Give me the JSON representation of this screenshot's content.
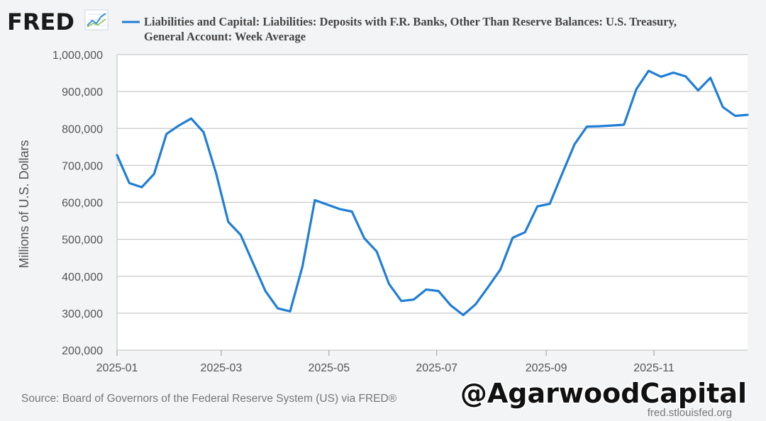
{
  "header": {
    "logo_text": "FRED",
    "legend_line1": "Liabilities and Capital: Liabilities: Deposits with F.R. Banks, Other Than Reserve Balances: U.S. Treasury,",
    "legend_line2": "General Account: Week Average"
  },
  "footer": {
    "source": "Source: Board of Governors of the Federal Reserve System (US) via FRED®",
    "url": "fred.stlouisfed.org",
    "watermark": "@AgarwoodCapital"
  },
  "colors": {
    "series": "#1f7ed6",
    "grid": "#c9c9c9",
    "plot_bg": "#ffffff",
    "page_bg": "#f3f4f6",
    "logo": "#1a1a1a"
  },
  "chart_data": {
    "type": "line",
    "title": "Liabilities and Capital: Liabilities: Deposits with F.R. Banks, Other Than Reserve Balances: U.S. Treasury, General Account: Week Average",
    "ylabel": "Millions of U.S. Dollars",
    "xlabel": "",
    "ylim": [
      200000,
      1000000
    ],
    "yticks": [
      200000,
      300000,
      400000,
      500000,
      600000,
      700000,
      800000,
      900000,
      1000000
    ],
    "ytick_labels": [
      "200,000",
      "300,000",
      "400,000",
      "500,000",
      "600,000",
      "700,000",
      "800,000",
      "900,000",
      "1,000,000"
    ],
    "xlim": [
      "2025-01-01",
      "2025-12-24"
    ],
    "xticks": [
      "2025-01-01",
      "2025-03-01",
      "2025-05-01",
      "2025-07-01",
      "2025-09-01",
      "2025-11-01"
    ],
    "xtick_labels": [
      "2025-01",
      "2025-03",
      "2025-05",
      "2025-07",
      "2025-09",
      "2025-11"
    ],
    "grid": true,
    "series": [
      {
        "name": "Liabilities and Capital: Liabilities: Deposits with F.R. Banks, Other Than Reserve Balances: U.S. Treasury, General Account: Week Average",
        "x": [
          "2025-01-01",
          "2025-01-08",
          "2025-01-15",
          "2025-01-22",
          "2025-01-29",
          "2025-02-05",
          "2025-02-12",
          "2025-02-19",
          "2025-02-26",
          "2025-03-05",
          "2025-03-12",
          "2025-03-19",
          "2025-03-26",
          "2025-04-02",
          "2025-04-09",
          "2025-04-16",
          "2025-04-23",
          "2025-04-30",
          "2025-05-07",
          "2025-05-14",
          "2025-05-21",
          "2025-05-28",
          "2025-06-04",
          "2025-06-11",
          "2025-06-18",
          "2025-06-25",
          "2025-07-02",
          "2025-07-09",
          "2025-07-16",
          "2025-07-23",
          "2025-07-30",
          "2025-08-06",
          "2025-08-13",
          "2025-08-20",
          "2025-08-27",
          "2025-09-03",
          "2025-09-10",
          "2025-09-17",
          "2025-09-24",
          "2025-10-01",
          "2025-10-08",
          "2025-10-15",
          "2025-10-22",
          "2025-10-29",
          "2025-11-05",
          "2025-11-12",
          "2025-11-19",
          "2025-11-26",
          "2025-12-03",
          "2025-12-10",
          "2025-12-17",
          "2025-12-24"
        ],
        "values": [
          728000,
          652000,
          641000,
          677000,
          785000,
          808000,
          827000,
          790000,
          680000,
          547000,
          512000,
          436000,
          360000,
          313000,
          305000,
          427000,
          606000,
          594000,
          582000,
          575000,
          503000,
          467000,
          379000,
          333000,
          337000,
          364000,
          360000,
          321000,
          295000,
          324000,
          370000,
          418000,
          504000,
          519000,
          589000,
          596000,
          677000,
          757000,
          805000,
          806000,
          808000,
          810000,
          906000,
          956000,
          940000,
          951000,
          941000,
          903000,
          937000,
          858000,
          834000,
          837000
        ]
      }
    ]
  }
}
